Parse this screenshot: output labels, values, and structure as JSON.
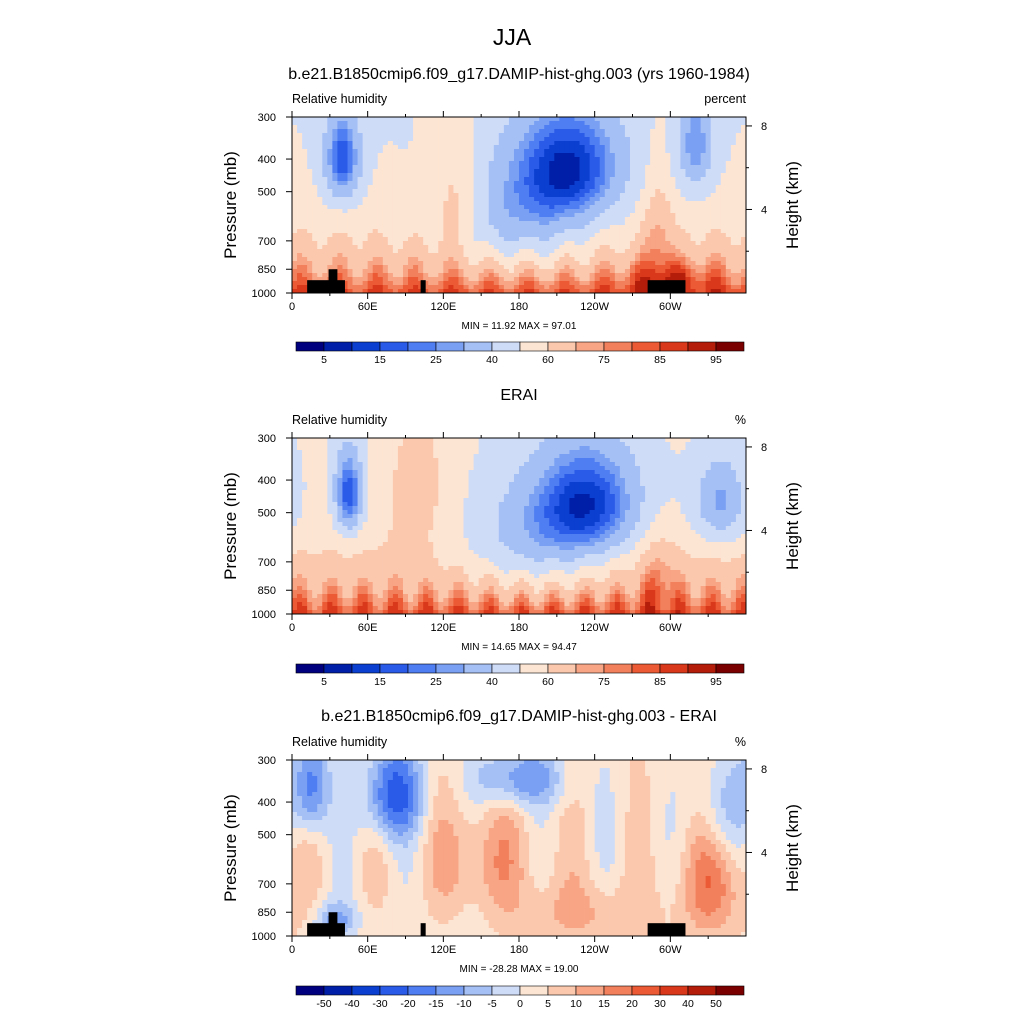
{
  "figure": {
    "title": "JJA"
  },
  "colors": {
    "rh_levels": [
      "#00007f",
      "#001fa8",
      "#0a3fd0",
      "#2a5ae8",
      "#4f7ef2",
      "#7aa0f4",
      "#a5c0f5",
      "#cfdcf8",
      "#fde5d3",
      "#fbc8ae",
      "#f8a585",
      "#f2805c",
      "#eb5a34",
      "#d9391a",
      "#b31d0a",
      "#7a0000"
    ],
    "diff_levels": [
      "#00007f",
      "#001fa8",
      "#0a3fd0",
      "#2a5ae8",
      "#4f7ef2",
      "#7aa0f4",
      "#a5c0f5",
      "#cfdcf8",
      "#fde5d3",
      "#fbc8ae",
      "#f8a585",
      "#f2805c",
      "#eb5a34",
      "#d9391a",
      "#b31d0a",
      "#7a0000"
    ],
    "terrain": "#000000"
  },
  "chart_data": [
    {
      "type": "heatmap",
      "title": "b.e21.B1850cmip6.f09_g17.DAMIP-hist-ghg.003 (yrs 1960-1984)",
      "left_label": "Relative humidity",
      "right_label": "percent",
      "ylabel": "Pressure (mb)",
      "y2label": "Height (km)",
      "x_ticks": [
        "0",
        "60E",
        "120E",
        "180",
        "120W",
        "60W"
      ],
      "x_tick_values": [
        0,
        60,
        120,
        180,
        240,
        300
      ],
      "xlim": [
        0,
        360
      ],
      "y_ticks": [
        "300",
        "400",
        "500",
        "700",
        "850",
        "1000"
      ],
      "y_tick_values": [
        300,
        400,
        500,
        700,
        850,
        1000
      ],
      "ylim": [
        1000,
        300
      ],
      "y_scale": "log",
      "y2_ticks": [
        "8",
        "4"
      ],
      "y2_tick_values": [
        8,
        4
      ],
      "stats": "MIN =  11.92  MAX =  97.01",
      "colorbar_labels": [
        "5",
        "15",
        "25",
        "40",
        "60",
        "75",
        "85",
        "95"
      ],
      "colorbar_boxes": 16,
      "field": "rh",
      "terrain": true
    },
    {
      "type": "heatmap",
      "title": "ERAI",
      "left_label": "Relative humidity",
      "right_label": "%",
      "ylabel": "Pressure (mb)",
      "y2label": "Height (km)",
      "x_ticks": [
        "0",
        "60E",
        "120E",
        "180",
        "120W",
        "60W"
      ],
      "x_tick_values": [
        0,
        60,
        120,
        180,
        240,
        300
      ],
      "xlim": [
        0,
        360
      ],
      "y_ticks": [
        "300",
        "400",
        "500",
        "700",
        "850",
        "1000"
      ],
      "y_tick_values": [
        300,
        400,
        500,
        700,
        850,
        1000
      ],
      "ylim": [
        1000,
        300
      ],
      "y_scale": "log",
      "y2_ticks": [
        "8",
        "4"
      ],
      "y2_tick_values": [
        8,
        4
      ],
      "stats": "MIN =  14.65  MAX =  94.47",
      "colorbar_labels": [
        "5",
        "15",
        "25",
        "40",
        "60",
        "75",
        "85",
        "95"
      ],
      "colorbar_boxes": 16,
      "field": "obs",
      "terrain": false
    },
    {
      "type": "heatmap",
      "title": "b.e21.B1850cmip6.f09_g17.DAMIP-hist-ghg.003 - ERAI",
      "left_label": "Relative humidity",
      "right_label": "%",
      "ylabel": "Pressure (mb)",
      "y2label": "Height (km)",
      "x_ticks": [
        "0",
        "60E",
        "120E",
        "180",
        "120W",
        "60W"
      ],
      "x_tick_values": [
        0,
        60,
        120,
        180,
        240,
        300
      ],
      "xlim": [
        0,
        360
      ],
      "y_ticks": [
        "300",
        "400",
        "500",
        "700",
        "850",
        "1000"
      ],
      "y_tick_values": [
        300,
        400,
        500,
        700,
        850,
        1000
      ],
      "ylim": [
        1000,
        300
      ],
      "y_scale": "log",
      "y2_ticks": [
        "8",
        "4"
      ],
      "y2_tick_values": [
        8,
        4
      ],
      "stats": "MIN = -28.28  MAX =  19.00",
      "colorbar_labels": [
        "-50",
        "-40",
        "-30",
        "-20",
        "-15",
        "-10",
        "-5",
        "0",
        "5",
        "10",
        "15",
        "20",
        "30",
        "40",
        "50"
      ],
      "colorbar_boxes": 16,
      "field": "diff",
      "terrain": true
    }
  ]
}
